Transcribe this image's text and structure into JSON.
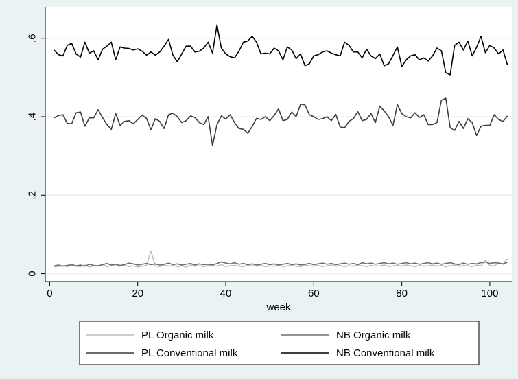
{
  "chart_data": {
    "type": "line",
    "title": "",
    "xlabel": "week",
    "ylabel": "",
    "xlim": [
      -1,
      105
    ],
    "ylim": [
      -0.02,
      0.68
    ],
    "xticks": [
      0,
      20,
      40,
      60,
      80,
      100
    ],
    "yticks": [
      0,
      0.2,
      0.4,
      0.6
    ],
    "ytick_labels": [
      "0",
      ".2",
      ".4",
      ".6"
    ],
    "grid": "horizontal",
    "legend_position": "bottom",
    "x": [
      1,
      2,
      3,
      4,
      5,
      6,
      7,
      8,
      9,
      10,
      11,
      12,
      13,
      14,
      15,
      16,
      17,
      18,
      19,
      20,
      21,
      22,
      23,
      24,
      25,
      26,
      27,
      28,
      29,
      30,
      31,
      32,
      33,
      34,
      35,
      36,
      37,
      38,
      39,
      40,
      41,
      42,
      43,
      44,
      45,
      46,
      47,
      48,
      49,
      50,
      51,
      52,
      53,
      54,
      55,
      56,
      57,
      58,
      59,
      60,
      61,
      62,
      63,
      64,
      65,
      66,
      67,
      68,
      69,
      70,
      71,
      72,
      73,
      74,
      75,
      76,
      77,
      78,
      79,
      80,
      81,
      82,
      83,
      84,
      85,
      86,
      87,
      88,
      89,
      90,
      91,
      92,
      93,
      94,
      95,
      96,
      97,
      98,
      99,
      100,
      101,
      102,
      103,
      104
    ],
    "series": [
      {
        "name": "PL Organic milk",
        "color": "#bdbdbd",
        "values": [
          0.017,
          0.019,
          0.02,
          0.018,
          0.021,
          0.019,
          0.018,
          0.022,
          0.017,
          0.02,
          0.019,
          0.023,
          0.018,
          0.021,
          0.02,
          0.019,
          0.022,
          0.018,
          0.02,
          0.017,
          0.019,
          0.021,
          0.058,
          0.02,
          0.018,
          0.022,
          0.019,
          0.021,
          0.018,
          0.02,
          0.017,
          0.022,
          0.019,
          0.02,
          0.018,
          0.021,
          0.02,
          0.019,
          0.023,
          0.018,
          0.02,
          0.021,
          0.019,
          0.018,
          0.022,
          0.02,
          0.019,
          0.021,
          0.018,
          0.02,
          0.019,
          0.022,
          0.018,
          0.02,
          0.021,
          0.019,
          0.018,
          0.022,
          0.02,
          0.019,
          0.021,
          0.018,
          0.02,
          0.022,
          0.019,
          0.021,
          0.018,
          0.02,
          0.019,
          0.022,
          0.02,
          0.018,
          0.021,
          0.019,
          0.02,
          0.022,
          0.018,
          0.02,
          0.021,
          0.019,
          0.022,
          0.02,
          0.018,
          0.021,
          0.019,
          0.02,
          0.022,
          0.019,
          0.021,
          0.018,
          0.02,
          0.022,
          0.019,
          0.021,
          0.02,
          0.018,
          0.022,
          0.02,
          0.033,
          0.021,
          0.019,
          0.028,
          0.024,
          0.038
        ]
      },
      {
        "name": "NB Organic milk",
        "color": "#6e6e6e",
        "values": [
          0.02,
          0.022,
          0.019,
          0.021,
          0.023,
          0.02,
          0.022,
          0.019,
          0.024,
          0.021,
          0.02,
          0.023,
          0.026,
          0.022,
          0.024,
          0.021,
          0.023,
          0.027,
          0.025,
          0.022,
          0.024,
          0.026,
          0.023,
          0.025,
          0.022,
          0.024,
          0.027,
          0.023,
          0.025,
          0.022,
          0.024,
          0.026,
          0.022,
          0.025,
          0.023,
          0.024,
          0.022,
          0.026,
          0.03,
          0.027,
          0.025,
          0.028,
          0.024,
          0.026,
          0.023,
          0.025,
          0.022,
          0.024,
          0.026,
          0.023,
          0.025,
          0.022,
          0.024,
          0.026,
          0.023,
          0.025,
          0.022,
          0.024,
          0.026,
          0.023,
          0.025,
          0.027,
          0.024,
          0.026,
          0.023,
          0.025,
          0.027,
          0.024,
          0.026,
          0.023,
          0.028,
          0.025,
          0.027,
          0.024,
          0.026,
          0.028,
          0.025,
          0.027,
          0.024,
          0.026,
          0.028,
          0.025,
          0.027,
          0.024,
          0.026,
          0.028,
          0.025,
          0.027,
          0.024,
          0.026,
          0.028,
          0.025,
          0.023,
          0.027,
          0.024,
          0.026,
          0.025,
          0.028,
          0.03,
          0.026,
          0.028,
          0.027,
          0.025,
          0.029
        ]
      },
      {
        "name": "PL Conventional milk",
        "color": "#3c3c3c",
        "values": [
          0.397,
          0.403,
          0.405,
          0.383,
          0.382,
          0.41,
          0.412,
          0.376,
          0.397,
          0.397,
          0.418,
          0.398,
          0.38,
          0.368,
          0.408,
          0.378,
          0.388,
          0.39,
          0.382,
          0.393,
          0.404,
          0.396,
          0.367,
          0.395,
          0.388,
          0.37,
          0.405,
          0.409,
          0.4,
          0.385,
          0.39,
          0.402,
          0.398,
          0.385,
          0.38,
          0.4,
          0.326,
          0.38,
          0.402,
          0.394,
          0.405,
          0.385,
          0.37,
          0.368,
          0.358,
          0.375,
          0.396,
          0.393,
          0.4,
          0.39,
          0.403,
          0.42,
          0.39,
          0.393,
          0.412,
          0.4,
          0.432,
          0.43,
          0.405,
          0.4,
          0.393,
          0.395,
          0.4,
          0.39,
          0.406,
          0.374,
          0.372,
          0.388,
          0.395,
          0.413,
          0.39,
          0.393,
          0.408,
          0.385,
          0.427,
          0.415,
          0.4,
          0.378,
          0.431,
          0.408,
          0.4,
          0.397,
          0.41,
          0.398,
          0.405,
          0.38,
          0.38,
          0.385,
          0.442,
          0.447,
          0.372,
          0.365,
          0.388,
          0.37,
          0.395,
          0.385,
          0.352,
          0.376,
          0.378,
          0.378,
          0.405,
          0.393,
          0.388,
          0.402
        ]
      },
      {
        "name": "NB Conventional milk",
        "color": "#000000",
        "values": [
          0.57,
          0.558,
          0.555,
          0.582,
          0.587,
          0.56,
          0.552,
          0.59,
          0.562,
          0.568,
          0.545,
          0.572,
          0.58,
          0.59,
          0.545,
          0.578,
          0.575,
          0.574,
          0.57,
          0.573,
          0.567,
          0.557,
          0.565,
          0.557,
          0.565,
          0.58,
          0.597,
          0.557,
          0.54,
          0.56,
          0.58,
          0.58,
          0.565,
          0.567,
          0.575,
          0.59,
          0.562,
          0.634,
          0.575,
          0.56,
          0.553,
          0.55,
          0.567,
          0.59,
          0.593,
          0.605,
          0.59,
          0.56,
          0.562,
          0.56,
          0.575,
          0.568,
          0.545,
          0.578,
          0.57,
          0.548,
          0.56,
          0.53,
          0.535,
          0.555,
          0.558,
          0.565,
          0.568,
          0.562,
          0.558,
          0.555,
          0.59,
          0.582,
          0.565,
          0.565,
          0.55,
          0.572,
          0.555,
          0.548,
          0.56,
          0.53,
          0.535,
          0.556,
          0.578,
          0.528,
          0.545,
          0.555,
          0.558,
          0.545,
          0.55,
          0.542,
          0.555,
          0.575,
          0.568,
          0.512,
          0.507,
          0.582,
          0.59,
          0.57,
          0.593,
          0.555,
          0.577,
          0.605,
          0.563,
          0.582,
          0.575,
          0.56,
          0.57,
          0.532
        ]
      }
    ]
  }
}
